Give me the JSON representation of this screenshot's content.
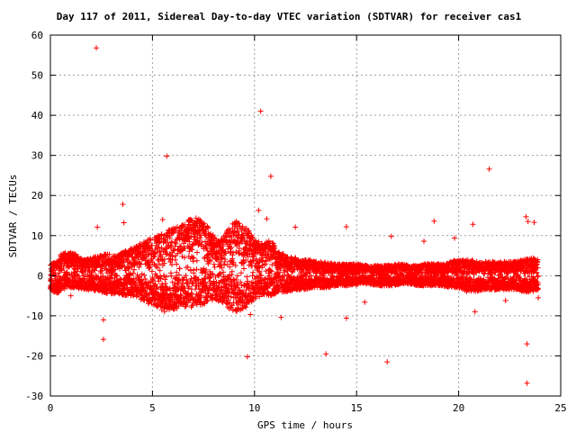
{
  "chart_data": {
    "type": "scatter",
    "title": "Day 117 of 2011, Sidereal Day-to-day VTEC variation (SDTVAR) for receiver cas1",
    "xlabel": "GPS time / hours",
    "ylabel": "SDTVAR / TECUs",
    "xlim": [
      0,
      25
    ],
    "ylim": [
      -30,
      60
    ],
    "xticks": [
      "0",
      "5",
      "10",
      "15",
      "20",
      "25"
    ],
    "yticks": [
      "-30",
      "-20",
      "-10",
      "0",
      "10",
      "20",
      "30",
      "40",
      "50",
      "60"
    ],
    "grid": true,
    "marker": "+",
    "colors": {
      "points": "#ff0000",
      "grid": "#a0a0a0",
      "axis": "#000000"
    },
    "outliers": [
      [
        2.25,
        56.8
      ],
      [
        10.3,
        41
      ],
      [
        5.7,
        29.8
      ],
      [
        10.8,
        24.8
      ],
      [
        21.5,
        26.6
      ],
      [
        3.55,
        17.8
      ],
      [
        3.6,
        13.2
      ],
      [
        2.3,
        12.1
      ],
      [
        5.5,
        14
      ],
      [
        10.2,
        16.3
      ],
      [
        10.6,
        14.2
      ],
      [
        12.0,
        12.1
      ],
      [
        14.5,
        12.2
      ],
      [
        18.8,
        13.6
      ],
      [
        20.7,
        12.8
      ],
      [
        23.3,
        14.7
      ],
      [
        23.4,
        13.5
      ],
      [
        23.7,
        13.3
      ],
      [
        16.7,
        9.8
      ],
      [
        18.3,
        8.6
      ],
      [
        19.8,
        9.4
      ],
      [
        2.6,
        -11
      ],
      [
        2.6,
        -15.9
      ],
      [
        9.8,
        -9.7
      ],
      [
        11.3,
        -10.4
      ],
      [
        14.5,
        -10.6
      ],
      [
        9.65,
        -20.2
      ],
      [
        13.5,
        -19.5
      ],
      [
        16.5,
        -21.5
      ],
      [
        23.35,
        -17
      ],
      [
        23.35,
        -26.8
      ],
      [
        20.8,
        -9
      ],
      [
        22.3,
        -6.2
      ],
      [
        15.4,
        -6.6
      ],
      [
        1.0,
        -5.0
      ],
      [
        23.9,
        -5.5
      ]
    ],
    "envelope": [
      [
        0.0,
        -3.5,
        3.0
      ],
      [
        0.3,
        -4.5,
        3.5
      ],
      [
        0.5,
        -4,
        5.5
      ],
      [
        0.8,
        -3,
        6
      ],
      [
        1.2,
        -3,
        5.5
      ],
      [
        1.6,
        -3.5,
        4
      ],
      [
        2.0,
        -3.5,
        4.5
      ],
      [
        2.4,
        -4,
        5
      ],
      [
        2.8,
        -4.5,
        5.5
      ],
      [
        3.2,
        -4.5,
        5
      ],
      [
        3.6,
        -5,
        6
      ],
      [
        4.0,
        -5,
        7
      ],
      [
        4.4,
        -6,
        8
      ],
      [
        4.8,
        -7,
        9
      ],
      [
        5.2,
        -8,
        10
      ],
      [
        5.6,
        -9,
        11
      ],
      [
        6.0,
        -8.5,
        12
      ],
      [
        6.4,
        -8,
        12.5
      ],
      [
        6.8,
        -8,
        14
      ],
      [
        7.2,
        -7.5,
        14.5
      ],
      [
        7.6,
        -7,
        13
      ],
      [
        8.0,
        -6,
        10
      ],
      [
        8.4,
        -6.5,
        9
      ],
      [
        8.8,
        -8.5,
        12.5
      ],
      [
        9.2,
        -9,
        14
      ],
      [
        9.6,
        -8,
        12
      ],
      [
        10.0,
        -6,
        9
      ],
      [
        10.4,
        -5,
        8
      ],
      [
        10.8,
        -5,
        9
      ],
      [
        11.2,
        -4,
        6
      ],
      [
        11.6,
        -4,
        5
      ],
      [
        12.0,
        -3.5,
        4.5
      ],
      [
        12.4,
        -3.5,
        4
      ],
      [
        12.8,
        -3,
        3.8
      ],
      [
        13.2,
        -3,
        3.5
      ],
      [
        13.6,
        -3,
        3.2
      ],
      [
        14.0,
        -2.5,
        3
      ],
      [
        14.4,
        -2.5,
        3
      ],
      [
        14.8,
        -2.5,
        3
      ],
      [
        15.2,
        -2,
        2.8
      ],
      [
        15.6,
        -2,
        2.5
      ],
      [
        16.0,
        -2.5,
        2.5
      ],
      [
        16.4,
        -2.5,
        2.5
      ],
      [
        16.8,
        -2.5,
        2.8
      ],
      [
        17.2,
        -2,
        3
      ],
      [
        17.6,
        -2,
        2.5
      ],
      [
        18.0,
        -2.5,
        2.5
      ],
      [
        18.4,
        -2.5,
        3
      ],
      [
        18.8,
        -2.5,
        3
      ],
      [
        19.2,
        -2.5,
        3
      ],
      [
        19.6,
        -3,
        3.5
      ],
      [
        20.0,
        -3,
        4
      ],
      [
        20.4,
        -4,
        4
      ],
      [
        20.8,
        -4,
        3.8
      ],
      [
        21.2,
        -3.5,
        3.5
      ],
      [
        21.6,
        -3.5,
        3.5
      ],
      [
        22.0,
        -3.5,
        3.5
      ],
      [
        22.4,
        -3.5,
        3.5
      ],
      [
        22.8,
        -3.5,
        3.5
      ],
      [
        23.2,
        -4,
        4
      ],
      [
        23.6,
        -4,
        4.5
      ],
      [
        23.9,
        -3.5,
        4
      ]
    ]
  }
}
